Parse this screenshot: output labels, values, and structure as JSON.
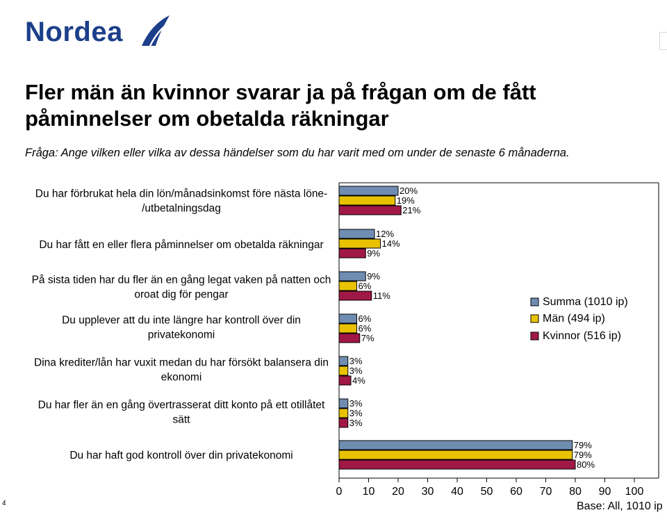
{
  "header": {
    "logo_text": "Nordea",
    "title_line1": "Fler män än kvinnor svarar ja på frågan om de fått",
    "title_line2": "påminnelser om obetalda räkningar",
    "subtitle": "Fråga: Ange vilken eller vilka av dessa händelser som du har varit med om under de senaste 6 månaderna."
  },
  "footer": {
    "page_number": "4",
    "base": "Base: All, 1010 ip"
  },
  "colors": {
    "summa": "#6f8db1",
    "man": "#e8c200",
    "kvinnor": "#a01845",
    "logo": "#1c3f8a"
  },
  "chart_data": {
    "type": "bar",
    "orientation": "horizontal",
    "categories": [
      [
        "Du har förbrukat hela din lön/månadsinkomst före nästa löne-",
        "/utbetalningsdag"
      ],
      [
        "Du har fått en eller flera påminnelser om obetalda räkningar"
      ],
      [
        "På sista tiden har du fler än en gång legat vaken på natten och",
        "oroat dig för pengar"
      ],
      [
        "Du upplever att du inte längre har kontroll över din",
        "privatekonomi"
      ],
      [
        "Dina krediter/lån har vuxit medan du har försökt balansera din",
        "ekonomi"
      ],
      [
        "Du har fler än en gång övertrasserat ditt konto på ett otillåtet",
        "sätt"
      ],
      [
        "Du har haft god kontroll över din privatekonomi"
      ]
    ],
    "series": [
      {
        "name": "Summa (1010 ip)",
        "values": [
          20,
          12,
          9,
          6,
          3,
          3,
          79
        ]
      },
      {
        "name": "Män (494 ip)",
        "values": [
          19,
          14,
          6,
          6,
          3,
          3,
          79
        ]
      },
      {
        "name": "Kvinnor (516 ip)",
        "values": [
          21,
          9,
          11,
          7,
          4,
          3,
          80
        ]
      }
    ],
    "value_suffix": "%",
    "xlim": [
      0,
      100
    ],
    "xticks": [
      0,
      10,
      20,
      30,
      40,
      50,
      60,
      70,
      80,
      90,
      100
    ],
    "legend_position": "right",
    "grid": false
  }
}
